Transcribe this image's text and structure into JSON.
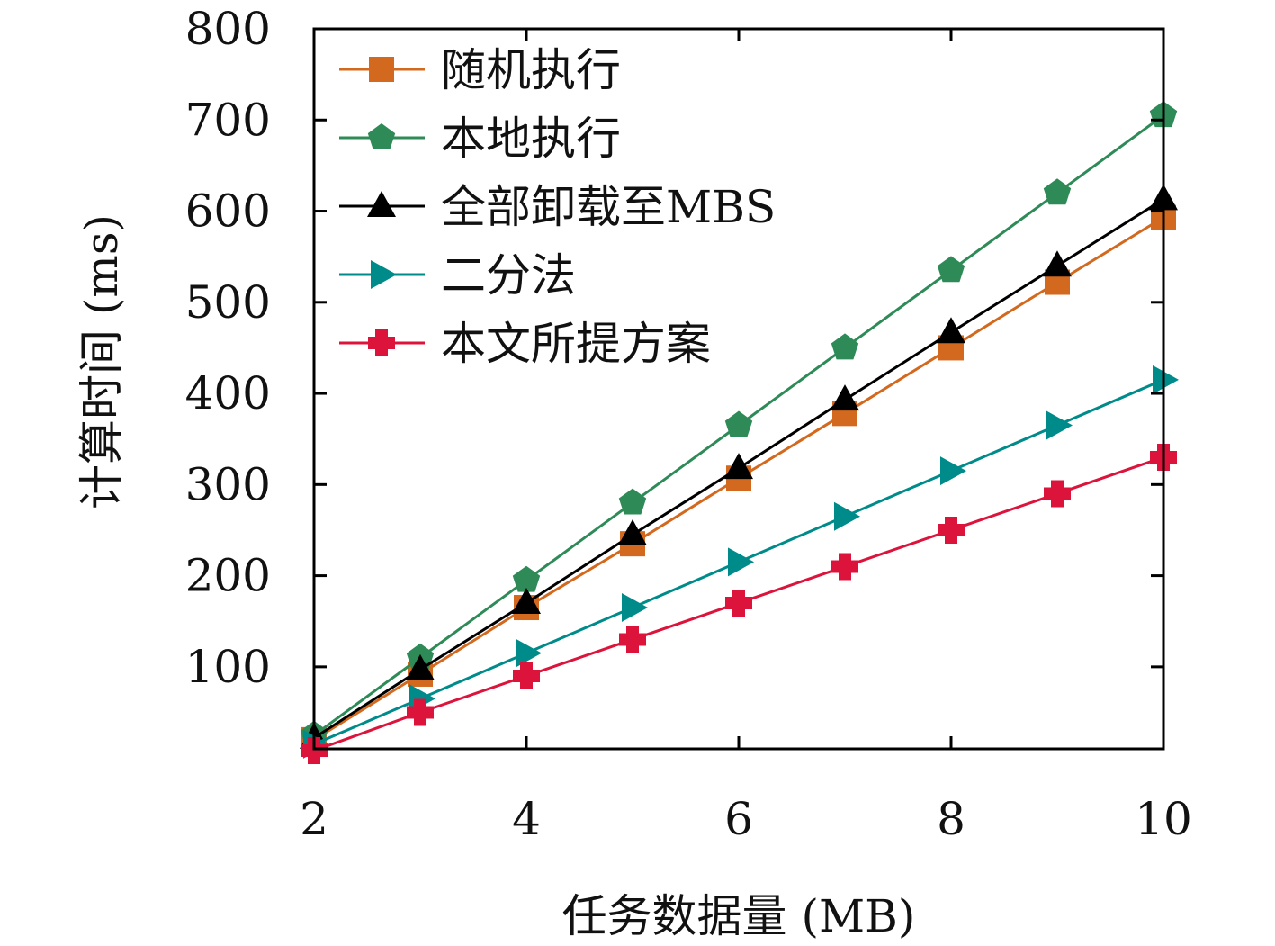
{
  "chart_data": {
    "type": "line",
    "xlabel": "任务数据量 (MB)",
    "ylabel": "计算时间 (ms)",
    "xlim": [
      2,
      10
    ],
    "ylim": [
      10,
      800
    ],
    "xticks": [
      2,
      4,
      6,
      8,
      10
    ],
    "yticks": [
      100,
      200,
      300,
      400,
      500,
      600,
      700,
      800
    ],
    "grid": false,
    "legend_position": "top-left",
    "x": [
      2,
      3,
      4,
      5,
      6,
      7,
      8,
      9,
      10
    ],
    "series": [
      {
        "name": "随机执行",
        "color": "#D2691E",
        "marker": "square",
        "values": [
          20,
          92,
          165,
          235,
          307,
          378,
          450,
          522,
          593
        ]
      },
      {
        "name": "本地执行",
        "color": "#2E8B57",
        "marker": "pentagon",
        "values": [
          25,
          110,
          195,
          280,
          365,
          450,
          535,
          620,
          705
        ]
      },
      {
        "name": "全部卸载至MBS",
        "color": "#000000",
        "marker": "triangle-up",
        "values": [
          22,
          97,
          170,
          245,
          318,
          393,
          467,
          540,
          613
        ]
      },
      {
        "name": "二分法",
        "color": "#008B8B",
        "marker": "triangle-right",
        "values": [
          15,
          65,
          115,
          165,
          215,
          265,
          315,
          365,
          415
        ]
      },
      {
        "name": "本文所提方案",
        "color": "#DC143C",
        "marker": "plus",
        "values": [
          8,
          50,
          90,
          130,
          170,
          210,
          250,
          290,
          330
        ]
      }
    ]
  }
}
